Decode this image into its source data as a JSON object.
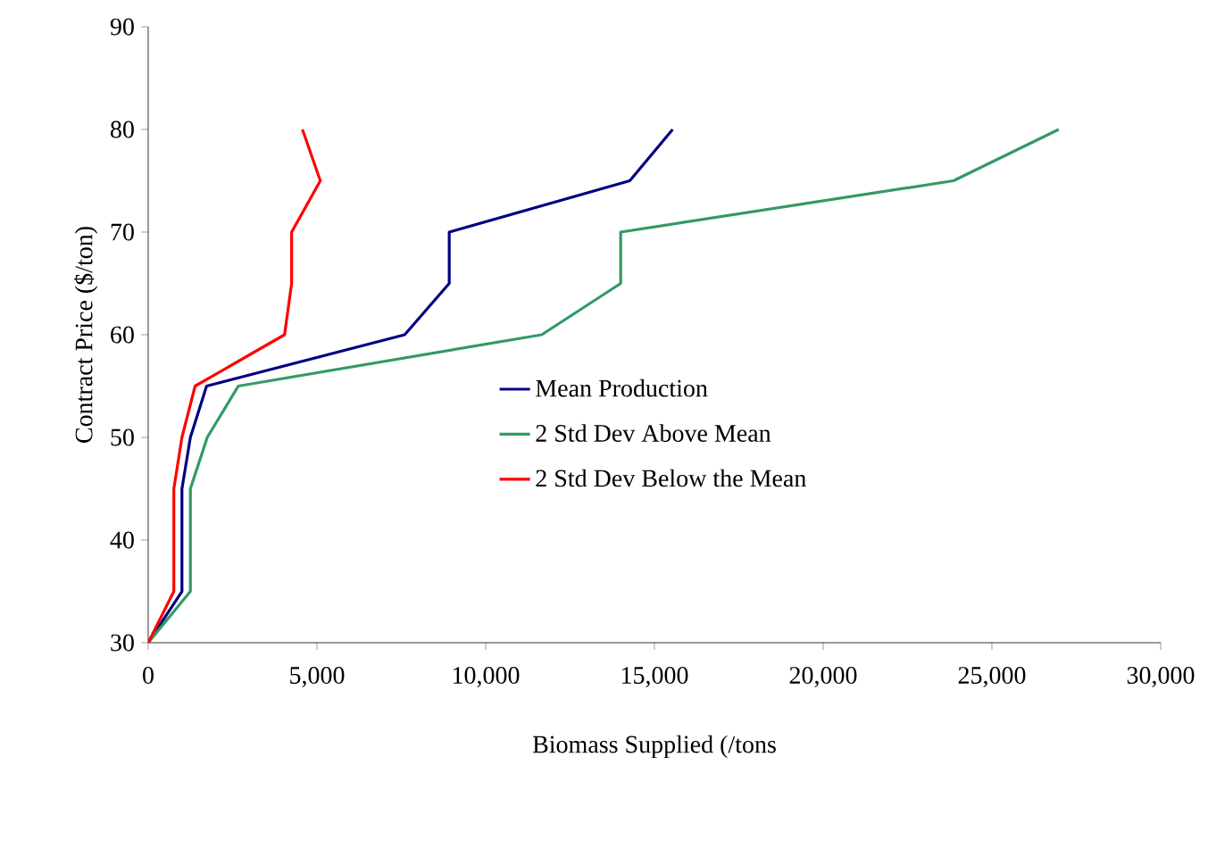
{
  "chart_data": {
    "type": "line",
    "xlabel": "Biomass Supplied (/tons",
    "ylabel": "Contract Price ($/ton)",
    "xlim": [
      0,
      30000
    ],
    "ylim": [
      30,
      90
    ],
    "xticks": [
      0,
      {
        "value": 5000,
        "label": "5,000"
      },
      {
        "value": 10000,
        "label": "10,000"
      },
      {
        "value": 15000,
        "label": "15,000"
      },
      {
        "value": 20000,
        "label": "20,000"
      },
      {
        "value": 25000,
        "label": "25,000"
      },
      {
        "value": 30000,
        "label": "30,000"
      }
    ],
    "yticks": [
      30,
      40,
      50,
      60,
      70,
      80,
      90
    ],
    "legend": "bottom right",
    "grid": false,
    "marker": "none",
    "line_style": "solid",
    "series": [
      {
        "name": "Mean Production",
        "color": "#000080",
        "x": [
          0,
          1000,
          1000,
          1250,
          1730,
          7600,
          8920,
          8920,
          14270,
          15540
        ],
        "values": [
          30,
          35,
          45,
          50,
          55,
          60,
          65,
          70,
          75,
          80
        ]
      },
      {
        "name": "2 Std Dev Above Mean",
        "color": "#339966",
        "x": [
          0,
          1250,
          1250,
          1750,
          2670,
          11660,
          14000,
          14000,
          23860,
          26980
        ],
        "values": [
          30,
          35,
          45,
          50,
          55,
          60,
          65,
          70,
          75,
          80
        ]
      },
      {
        "name": "2 Std Dev Below the Mean",
        "color": "#ff0000",
        "x": [
          0,
          760,
          760,
          1000,
          1390,
          4040,
          4250,
          4250,
          5100,
          4570
        ],
        "values": [
          30,
          35,
          45,
          50,
          55,
          60,
          65,
          70,
          75,
          80
        ]
      }
    ]
  }
}
